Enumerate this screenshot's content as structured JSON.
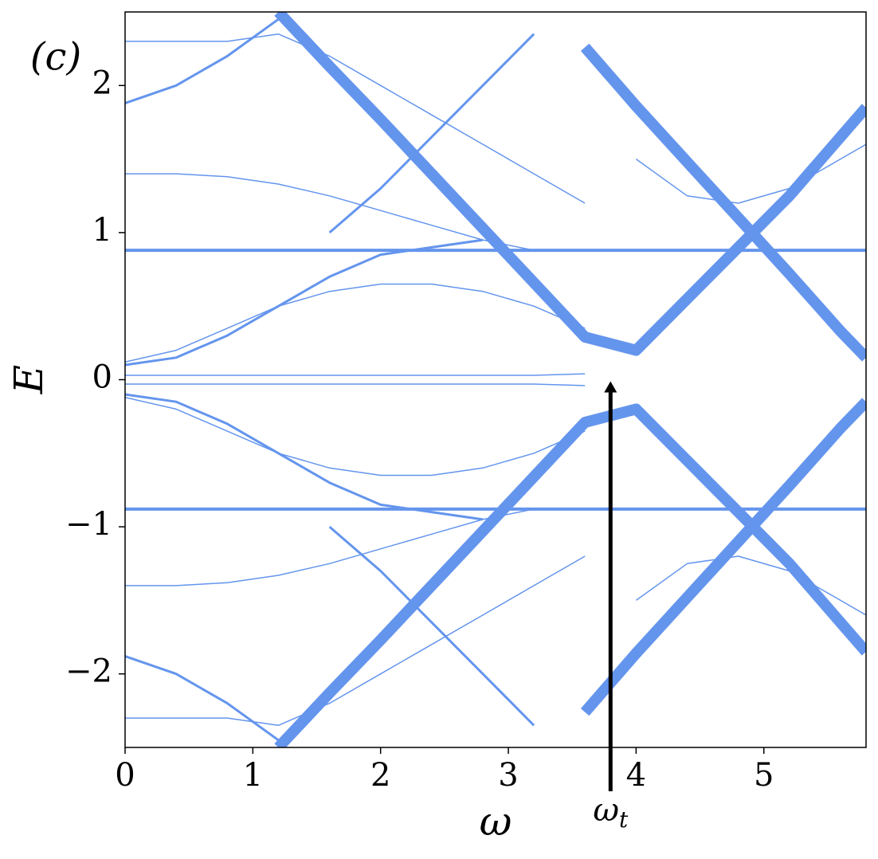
{
  "chart_data": {
    "type": "line",
    "panel_label": "(c)",
    "xlabel": "ω",
    "ylabel": "E",
    "x": [
      0,
      0.4,
      0.8,
      1.2,
      1.6,
      2.0,
      2.4,
      2.8,
      3.2,
      3.6,
      4.0,
      4.4,
      4.8,
      5.2,
      5.6,
      5.8
    ],
    "xlim": [
      0,
      5.8
    ],
    "ylim": [
      -2.5,
      2.5
    ],
    "xticks": [
      0,
      1,
      2,
      3,
      4,
      5
    ],
    "yticks": [
      {
        "value": -2,
        "label": "−2"
      },
      {
        "value": -1,
        "label": "−1"
      },
      0,
      1,
      2
    ],
    "annotation": {
      "text": "ω",
      "subscript": "t",
      "x": 3.8,
      "y": 0
    },
    "series": [
      {
        "color": "#6495ed",
        "linewidth": 1.5,
        "values": [
          0.03,
          0.03,
          0.03,
          0.03,
          0.03,
          0.03,
          0.03,
          0.03,
          0.03,
          0.04,
          null,
          null,
          null,
          null,
          null,
          null
        ]
      },
      {
        "color": "#6495ed",
        "linewidth": 1.5,
        "values": [
          -0.03,
          -0.03,
          -0.03,
          -0.03,
          -0.03,
          -0.03,
          -0.03,
          -0.03,
          -0.03,
          -0.04,
          null,
          null,
          null,
          null,
          null,
          null
        ]
      },
      {
        "color": "#6495ed",
        "linewidth": 14,
        "values": [
          null,
          null,
          null,
          2.5,
          2.13,
          1.77,
          1.4,
          1.03,
          0.66,
          0.29,
          0.2,
          0.55,
          0.9,
          1.25,
          1.65,
          1.85
        ]
      },
      {
        "color": "#6495ed",
        "linewidth": 14,
        "values": [
          null,
          null,
          null,
          -2.5,
          -2.13,
          -1.77,
          -1.4,
          -1.03,
          -0.66,
          -0.29,
          -0.2,
          -0.55,
          -0.9,
          -1.25,
          -1.65,
          -1.85
        ]
      },
      {
        "color": "#6495ed",
        "linewidth": 14,
        "values": [
          null,
          null,
          null,
          null,
          null,
          null,
          null,
          null,
          null,
          2.26,
          1.86,
          1.48,
          1.1,
          0.72,
          0.33,
          0.15
        ]
      },
      {
        "color": "#6495ed",
        "linewidth": 14,
        "values": [
          null,
          null,
          null,
          null,
          null,
          null,
          null,
          null,
          null,
          -2.26,
          -1.86,
          -1.48,
          -1.1,
          -0.72,
          -0.33,
          -0.15
        ]
      },
      {
        "color": "#6495ed",
        "linewidth": 4,
        "values": [
          0.88,
          0.88,
          0.88,
          0.88,
          0.88,
          0.88,
          0.88,
          0.88,
          0.88,
          0.88,
          0.88,
          0.88,
          0.88,
          0.88,
          0.88,
          0.88
        ]
      },
      {
        "color": "#6495ed",
        "linewidth": 4,
        "values": [
          -0.88,
          -0.88,
          -0.88,
          -0.88,
          -0.88,
          -0.88,
          -0.88,
          -0.88,
          -0.88,
          -0.88,
          -0.88,
          -0.88,
          -0.88,
          -0.88,
          -0.88,
          -0.88
        ]
      },
      {
        "color": "#6495ed",
        "linewidth": 3,
        "values": [
          0.1,
          0.15,
          0.3,
          0.5,
          0.7,
          0.85,
          0.9,
          0.95,
          null,
          null,
          null,
          null,
          null,
          null,
          null,
          null
        ]
      },
      {
        "color": "#6495ed",
        "linewidth": 3,
        "values": [
          -0.1,
          -0.15,
          -0.3,
          -0.5,
          -0.7,
          -0.85,
          -0.9,
          -0.95,
          null,
          null,
          null,
          null,
          null,
          null,
          null,
          null
        ]
      },
      {
        "color": "#6495ed",
        "linewidth": 3,
        "values": [
          1.88,
          2.0,
          2.2,
          2.45,
          null,
          null,
          null,
          null,
          null,
          null,
          null,
          null,
          null,
          null,
          null,
          null
        ]
      },
      {
        "color": "#6495ed",
        "linewidth": 3,
        "values": [
          -1.88,
          -2.0,
          -2.2,
          -2.45,
          null,
          null,
          null,
          null,
          null,
          null,
          null,
          null,
          null,
          null,
          null,
          null
        ]
      },
      {
        "color": "#6495ed",
        "linewidth": 3,
        "values": [
          null,
          null,
          null,
          null,
          1.0,
          1.3,
          1.65,
          2.0,
          2.35,
          null,
          null,
          null,
          null,
          null,
          null,
          null
        ]
      },
      {
        "color": "#6495ed",
        "linewidth": 3,
        "values": [
          null,
          null,
          null,
          null,
          -1.0,
          -1.3,
          -1.65,
          -2.0,
          -2.35,
          null,
          null,
          null,
          null,
          null,
          null,
          null
        ]
      },
      {
        "color": "#6495ed",
        "linewidth": 1.5,
        "values": [
          0.12,
          0.2,
          0.35,
          0.5,
          0.6,
          0.65,
          0.65,
          0.6,
          0.5,
          0.35,
          null,
          null,
          null,
          null,
          null,
          null
        ]
      },
      {
        "color": "#6495ed",
        "linewidth": 1.5,
        "values": [
          -0.12,
          -0.2,
          -0.35,
          -0.5,
          -0.6,
          -0.65,
          -0.65,
          -0.6,
          -0.5,
          -0.35,
          null,
          null,
          null,
          null,
          null,
          null
        ]
      },
      {
        "color": "#6495ed",
        "linewidth": 1.5,
        "values": [
          1.4,
          1.4,
          1.38,
          1.33,
          1.25,
          1.15,
          1.05,
          0.95,
          0.88,
          null,
          null,
          null,
          null,
          null,
          null,
          null
        ]
      },
      {
        "color": "#6495ed",
        "linewidth": 1.5,
        "values": [
          -1.4,
          -1.4,
          -1.38,
          -1.33,
          -1.25,
          -1.15,
          -1.05,
          -0.95,
          -0.88,
          null,
          null,
          null,
          null,
          null,
          null,
          null
        ]
      },
      {
        "color": "#6495ed",
        "linewidth": 1.5,
        "values": [
          null,
          null,
          null,
          null,
          null,
          null,
          null,
          null,
          null,
          null,
          1.5,
          1.25,
          1.2,
          1.3,
          1.5,
          1.6
        ]
      },
      {
        "color": "#6495ed",
        "linewidth": 1.5,
        "values": [
          null,
          null,
          null,
          null,
          null,
          null,
          null,
          null,
          null,
          null,
          -1.5,
          -1.25,
          -1.2,
          -1.3,
          -1.5,
          -1.6
        ]
      },
      {
        "color": "#6495ed",
        "linewidth": 1.5,
        "values": [
          2.3,
          2.3,
          2.3,
          2.35,
          2.2,
          2.0,
          1.8,
          1.6,
          1.4,
          1.2,
          null,
          null,
          null,
          null,
          null,
          null
        ]
      },
      {
        "color": "#6495ed",
        "linewidth": 1.5,
        "values": [
          -2.3,
          -2.3,
          -2.3,
          -2.35,
          -2.2,
          -2.0,
          -1.8,
          -1.6,
          -1.4,
          -1.2,
          null,
          null,
          null,
          null,
          null,
          null
        ]
      }
    ]
  }
}
